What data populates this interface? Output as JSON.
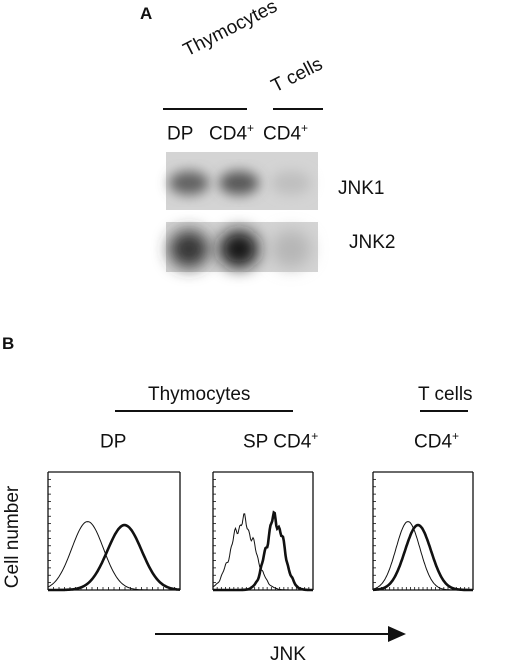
{
  "panel_a": {
    "letter": "A",
    "group_thymocytes": "Thymocytes",
    "group_tcells": "T cells",
    "lanes": [
      {
        "base": "DP",
        "sup": ""
      },
      {
        "base": "CD4",
        "sup": "+"
      },
      {
        "base": "CD4",
        "sup": "+"
      }
    ],
    "blots": [
      {
        "label": "JNK1",
        "band_intensity": [
          0.55,
          0.6,
          0.05
        ]
      },
      {
        "label": "JNK2",
        "band_intensity": [
          0.8,
          0.95,
          0.1
        ]
      }
    ]
  },
  "panel_b": {
    "letter": "B",
    "group_thymocytes": "Thymocytes",
    "group_tcells": "T cells",
    "y_axis_label": "Cell number",
    "x_axis_label": "JNK",
    "histograms": [
      {
        "label_base": "DP",
        "label_sup": "",
        "control_peak": 0.3,
        "jnk_peak": 0.58
      },
      {
        "label_base": "SP CD4",
        "label_sup": "+",
        "control_peak": 0.3,
        "jnk_peak": 0.62
      },
      {
        "label_base": "CD4",
        "label_sup": "+",
        "control_peak": 0.35,
        "jnk_peak": 0.45
      }
    ]
  }
}
